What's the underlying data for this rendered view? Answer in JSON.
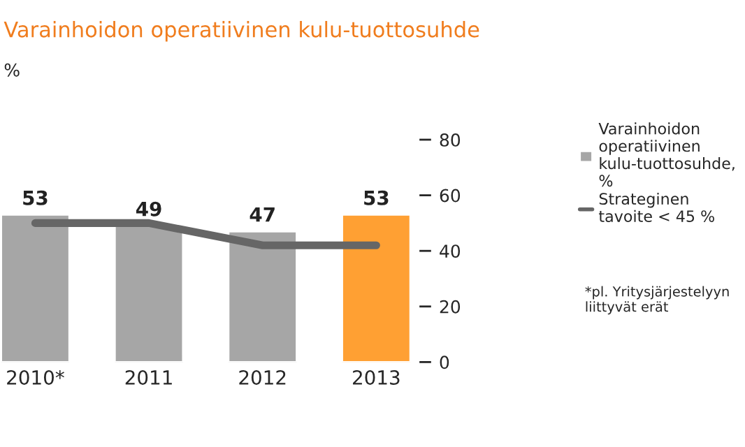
{
  "chart_data": {
    "type": "bar",
    "title": "Varainhoidon operatiivinen kulu-tuottosuhde",
    "ylabel": "%",
    "categories": [
      "2010*",
      "2011",
      "2012",
      "2013"
    ],
    "series": [
      {
        "name": "Varainhoidon\noperatiivinen\nkulu-tuottosuhde,\n%",
        "colors": [
          "#a6a6a6",
          "#a6a6a6",
          "#a6a6a6",
          "#ffa033"
        ],
        "color": "#a6a6a6",
        "values": [
          53,
          49,
          47,
          53
        ],
        "value_labels": [
          "53",
          "49",
          "47",
          "53"
        ]
      },
      {
        "name": "Strateginen\ntavoite < 45 %",
        "type": "line",
        "color": "#666666",
        "values": [
          50,
          50,
          42,
          42
        ]
      }
    ],
    "ylim": [
      0,
      80
    ],
    "yticks": [
      0,
      20,
      40,
      60,
      80
    ],
    "grid": false,
    "legend": "right",
    "annotations": [
      "*pl. Yritysjärjestelyyn\nliittyvät erät"
    ]
  }
}
